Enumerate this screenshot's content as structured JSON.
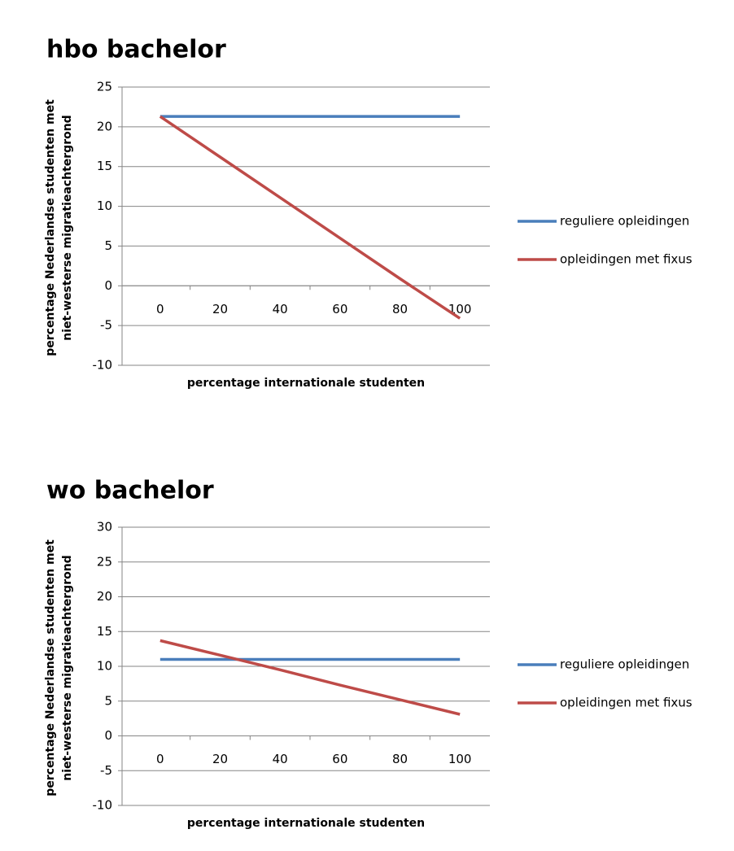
{
  "chart_data": [
    {
      "type": "line",
      "title": "hbo bachelor",
      "y_label": [
        "percentage Nederlandse studenten met",
        "niet-westerse migratieachtergrond"
      ],
      "x_label": "percentage internationale studenten",
      "categories": [
        0,
        20,
        40,
        60,
        80,
        100
      ],
      "series": [
        {
          "name": "reguliere opleidingen",
          "color": "#4a7ebb",
          "values": [
            21.3,
            21.3,
            21.3,
            21.3,
            21.3,
            21.3
          ]
        },
        {
          "name": "opleidingen met fixus",
          "color": "#be4b48",
          "values": [
            21.3,
            16.2,
            11.1,
            6.0,
            0.9,
            -4.1
          ]
        }
      ],
      "ylim": [
        -10,
        25
      ],
      "yticks": [
        -10,
        -5,
        0,
        5,
        10,
        15,
        20,
        25
      ],
      "grid": true,
      "legend": "right"
    },
    {
      "type": "line",
      "title": "wo bachelor",
      "y_label": [
        "percentage Nederlandse studenten met",
        "niet-westerse migratieachtergrond"
      ],
      "x_label": "percentage internationale studenten",
      "categories": [
        0,
        20,
        40,
        60,
        80,
        100
      ],
      "series": [
        {
          "name": "reguliere opleidingen",
          "color": "#4a7ebb",
          "values": [
            11,
            11,
            11,
            11,
            11,
            11
          ]
        },
        {
          "name": "opleidingen met fixus",
          "color": "#be4b48",
          "values": [
            13.7,
            11.6,
            9.5,
            7.3,
            5.2,
            3.1
          ]
        }
      ],
      "ylim": [
        -10,
        30
      ],
      "yticks": [
        -10,
        -5,
        0,
        5,
        10,
        15,
        20,
        25,
        30
      ],
      "grid": true,
      "legend": "right"
    }
  ]
}
